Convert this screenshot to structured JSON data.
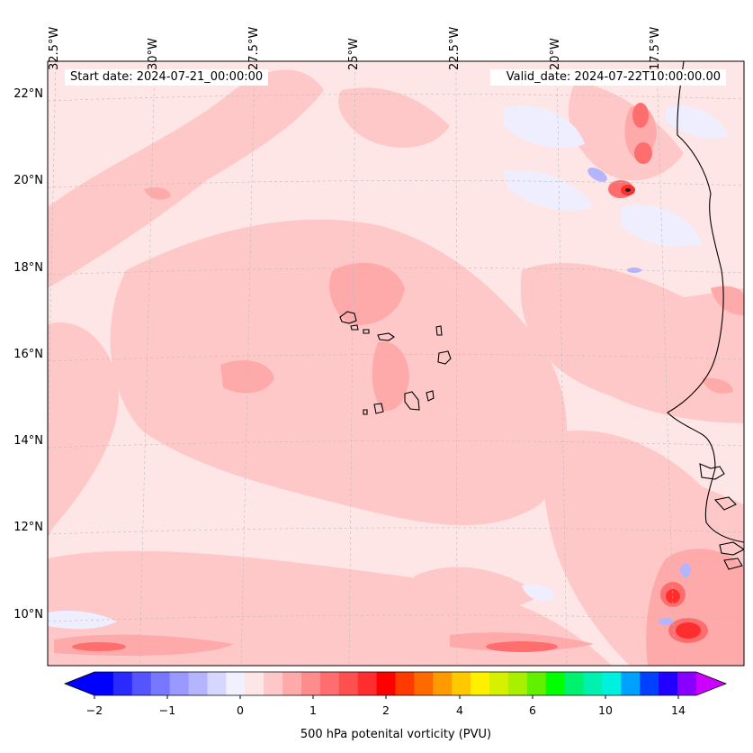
{
  "map": {
    "start_label": "Start date: 2024-07-21_00:00:00",
    "valid_label": "Valid_date: 2024-07-22T10:00:00.00",
    "lon_labels": [
      "32.5°W",
      "30°W",
      "27.5°W",
      "25°W",
      "22.5°W",
      "20°W",
      "17.5°W"
    ],
    "lat_labels": [
      "22°N",
      "20°N",
      "18°N",
      "16°N",
      "14°N",
      "12°N",
      "10°N"
    ],
    "region": "Cape Verde Islands and West African coast",
    "field": "500 hPa potential vorticity"
  },
  "colorbar": {
    "title": "500 hPa potenital vorticity (PVU)",
    "tick_labels": [
      "−2",
      "−1",
      "0",
      "1",
      "2",
      "4",
      "6",
      "10",
      "14"
    ],
    "colors": [
      "#0000ff",
      "#2a2aff",
      "#5555ff",
      "#7777ff",
      "#9999ff",
      "#b4b4ff",
      "#d6d6ff",
      "#f0f0ff",
      "#ffe6e6",
      "#ffc8c8",
      "#ffaaaa",
      "#ff8c8c",
      "#ff6e6e",
      "#ff5050",
      "#ff2e2e",
      "#ff0000",
      "#ff3a00",
      "#ff6a00",
      "#ff9a00",
      "#ffc800",
      "#fff000",
      "#d6f000",
      "#a8f000",
      "#60f000",
      "#00ff00",
      "#00f070",
      "#00f0b0",
      "#00f0e0",
      "#00a0ff",
      "#0040ff",
      "#2200ff",
      "#8800ff"
    ],
    "extend_low_color": "#0000ff",
    "extend_high_color": "#cc00ff"
  }
}
